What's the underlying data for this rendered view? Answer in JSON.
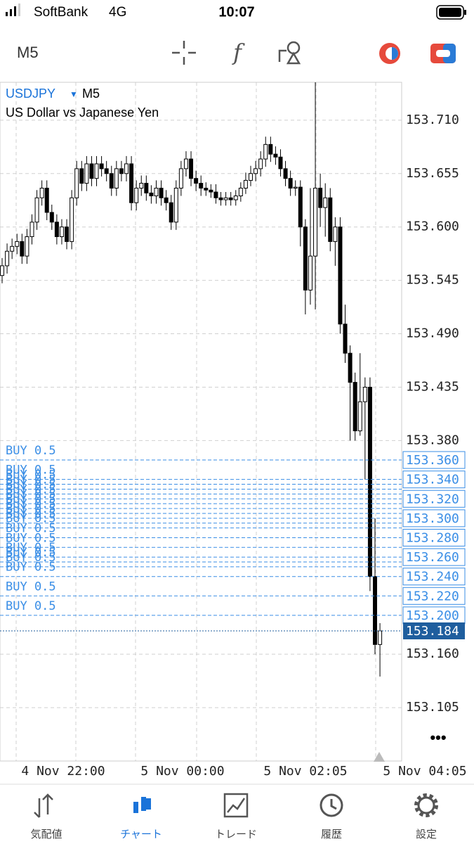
{
  "status_bar": {
    "carrier": "SoftBank",
    "network": "4G",
    "time": "10:07"
  },
  "toolbar": {
    "timeframe": "M5"
  },
  "chart_data": {
    "type": "candlestick",
    "symbol": "USDJPY",
    "timeframe": "M5",
    "title": "US Dollar vs Japanese Yen",
    "x": [
      "4 Nov 22:00",
      "5 Nov 00:00",
      "5 Nov 02:05",
      "5 Nov 04:05"
    ],
    "ylim": [
      153.05,
      153.749
    ],
    "yticks": [
      {
        "value": 153.71,
        "label": "153.710"
      },
      {
        "value": 153.655,
        "label": "153.655"
      },
      {
        "value": 153.6,
        "label": "153.600"
      },
      {
        "value": 153.545,
        "label": "153.545"
      },
      {
        "value": 153.49,
        "label": "153.490"
      },
      {
        "value": 153.435,
        "label": "153.435"
      },
      {
        "value": 153.38,
        "label": "153.380"
      },
      {
        "value": 153.16,
        "label": "153.160"
      },
      {
        "value": 153.105,
        "label": "153.105"
      }
    ],
    "grid": true,
    "up_color": "#ffffff",
    "down_color": "#000000",
    "ohlc": [
      [
        153.55,
        153.568,
        153.542,
        153.56
      ],
      [
        153.56,
        153.583,
        153.552,
        153.575
      ],
      [
        153.575,
        153.588,
        153.567,
        153.58
      ],
      [
        153.58,
        153.593,
        153.572,
        153.585
      ],
      [
        153.585,
        153.593,
        153.562,
        153.57
      ],
      [
        153.57,
        153.598,
        153.562,
        153.59
      ],
      [
        153.59,
        153.613,
        153.582,
        153.605
      ],
      [
        153.605,
        153.638,
        153.597,
        153.63
      ],
      [
        153.63,
        153.648,
        153.622,
        153.64
      ],
      [
        153.64,
        153.648,
        153.607,
        153.615
      ],
      [
        153.615,
        153.623,
        153.597,
        153.605
      ],
      [
        153.605,
        153.613,
        153.582,
        153.59
      ],
      [
        153.59,
        153.608,
        153.582,
        153.6
      ],
      [
        153.6,
        153.608,
        153.577,
        153.585
      ],
      [
        153.585,
        153.638,
        153.577,
        153.63
      ],
      [
        153.63,
        153.668,
        153.622,
        153.66
      ],
      [
        153.66,
        153.668,
        153.637,
        153.645
      ],
      [
        153.645,
        153.673,
        153.637,
        153.665
      ],
      [
        153.665,
        153.673,
        153.642,
        153.65
      ],
      [
        153.65,
        153.673,
        153.642,
        153.665
      ],
      [
        153.665,
        153.673,
        153.652,
        153.66
      ],
      [
        153.66,
        153.668,
        153.647,
        153.655
      ],
      [
        153.655,
        153.663,
        153.632,
        153.64
      ],
      [
        153.64,
        153.668,
        153.632,
        153.66
      ],
      [
        153.66,
        153.668,
        153.647,
        153.655
      ],
      [
        153.655,
        153.673,
        153.647,
        153.665
      ],
      [
        153.665,
        153.673,
        153.617,
        153.625
      ],
      [
        153.625,
        153.648,
        153.617,
        153.64
      ],
      [
        153.64,
        153.653,
        153.632,
        153.645
      ],
      [
        153.645,
        153.653,
        153.627,
        153.635
      ],
      [
        153.635,
        153.643,
        153.624,
        153.632
      ],
      [
        153.632,
        153.648,
        153.624,
        153.64
      ],
      [
        153.64,
        153.648,
        153.622,
        153.63
      ],
      [
        153.63,
        153.638,
        153.617,
        153.625
      ],
      [
        153.625,
        153.633,
        153.597,
        153.605
      ],
      [
        153.605,
        153.648,
        153.597,
        153.64
      ],
      [
        153.64,
        153.668,
        153.632,
        153.66
      ],
      [
        153.66,
        153.678,
        153.652,
        153.67
      ],
      [
        153.67,
        153.678,
        153.642,
        153.65
      ],
      [
        153.65,
        153.658,
        153.637,
        153.645
      ],
      [
        153.645,
        153.653,
        153.632,
        153.64
      ],
      [
        153.64,
        153.646,
        153.632,
        153.638
      ],
      [
        153.638,
        153.644,
        153.63,
        153.636
      ],
      [
        153.636,
        153.644,
        153.624,
        153.63
      ],
      [
        153.63,
        153.636,
        153.622,
        153.628
      ],
      [
        153.628,
        153.636,
        153.622,
        153.63
      ],
      [
        153.63,
        153.636,
        153.622,
        153.628
      ],
      [
        153.628,
        153.638,
        153.622,
        153.632
      ],
      [
        153.632,
        153.646,
        153.626,
        153.64
      ],
      [
        153.64,
        153.656,
        153.634,
        153.648
      ],
      [
        153.648,
        153.663,
        153.642,
        153.655
      ],
      [
        153.655,
        153.668,
        153.647,
        153.66
      ],
      [
        153.66,
        153.678,
        153.652,
        153.67
      ],
      [
        153.67,
        153.693,
        153.662,
        153.685
      ],
      [
        153.685,
        153.693,
        153.667,
        153.675
      ],
      [
        153.675,
        153.683,
        153.664,
        153.672
      ],
      [
        153.672,
        153.68,
        153.652,
        153.66
      ],
      [
        153.66,
        153.668,
        153.642,
        153.65
      ],
      [
        153.65,
        153.658,
        153.632,
        153.64
      ],
      [
        153.64,
        153.648,
        153.632,
        153.641
      ],
      [
        153.641,
        153.648,
        153.58,
        153.6
      ],
      [
        153.6,
        153.608,
        153.51,
        153.535
      ],
      [
        153.535,
        153.64,
        153.52,
        153.57
      ],
      [
        153.57,
        153.749,
        153.515,
        153.64
      ],
      [
        153.64,
        153.655,
        153.6,
        153.62
      ],
      [
        153.62,
        153.645,
        153.59,
        153.63
      ],
      [
        153.63,
        153.64,
        153.575,
        153.585
      ],
      [
        153.585,
        153.61,
        153.56,
        153.6
      ],
      [
        153.6,
        153.61,
        153.49,
        153.5
      ],
      [
        153.5,
        153.52,
        153.46,
        153.47
      ],
      [
        153.47,
        153.478,
        153.38,
        153.44
      ],
      [
        153.44,
        153.45,
        153.38,
        153.39
      ],
      [
        153.39,
        153.47,
        153.385,
        153.42
      ],
      [
        153.42,
        153.445,
        153.34,
        153.435
      ],
      [
        153.435,
        153.445,
        153.225,
        153.24
      ],
      [
        153.24,
        153.3,
        153.16,
        153.17
      ],
      [
        153.17,
        153.192,
        153.137,
        153.184
      ]
    ],
    "orders": [
      {
        "label": "BUY 0.5",
        "price": 153.36
      },
      {
        "label": "BUY 0.5",
        "price": 153.34
      },
      {
        "label": "BUY 0.5",
        "price": 153.335
      },
      {
        "label": "BUY 0.5",
        "price": 153.33
      },
      {
        "label": "BUY 0.5",
        "price": 153.325
      },
      {
        "label": "BUY 0.5",
        "price": 153.32
      },
      {
        "label": "BUY 0.5",
        "price": 153.315
      },
      {
        "label": "BUY 0.5",
        "price": 153.31
      },
      {
        "label": "BUY 0.5",
        "price": 153.305
      },
      {
        "label": "BUY 0.5",
        "price": 153.3
      },
      {
        "label": "BUY 0.5",
        "price": 153.295
      },
      {
        "label": "BUY 0.5",
        "price": 153.29
      },
      {
        "label": "BUY 0.5",
        "price": 153.28
      },
      {
        "label": "BUY 0.5",
        "price": 153.27
      },
      {
        "label": "BUY 0.5",
        "price": 153.26
      },
      {
        "label": "BUY 0.5",
        "price": 153.255
      },
      {
        "label": "BUY 0.5",
        "price": 153.25
      },
      {
        "label": "BUY 0.5",
        "price": 153.24
      },
      {
        "label": "BUY 0.5",
        "price": 153.22
      },
      {
        "label": "BUY 0.5",
        "price": 153.2
      }
    ],
    "order_color": "#3a8ee6",
    "price_labels": [
      {
        "value": 153.36,
        "label": "153.360"
      },
      {
        "value": 153.34,
        "label": "153.340"
      },
      {
        "value": 153.32,
        "label": "153.320"
      },
      {
        "value": 153.3,
        "label": "153.300"
      },
      {
        "value": 153.28,
        "label": "153.280"
      },
      {
        "value": 153.26,
        "label": "153.260"
      },
      {
        "value": 153.24,
        "label": "153.240"
      },
      {
        "value": 153.22,
        "label": "153.220"
      },
      {
        "value": 153.2,
        "label": "153.200"
      }
    ],
    "current_price": 153.184,
    "current_color": "#1f5e9e"
  },
  "tabs": [
    {
      "label": "気配値"
    },
    {
      "label": "チャート",
      "active": true
    },
    {
      "label": "トレード"
    },
    {
      "label": "履歴"
    },
    {
      "label": "設定"
    }
  ]
}
